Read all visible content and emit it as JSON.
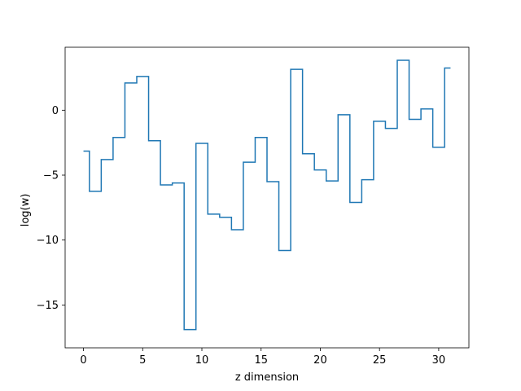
{
  "chart_data": {
    "type": "line",
    "drawstyle": "steps-mid",
    "xlabel": "z dimension",
    "ylabel": "log(w)",
    "xlim": [
      -1.55,
      32.55
    ],
    "ylim": [
      -18.3,
      4.85
    ],
    "xticks": [
      0,
      5,
      10,
      15,
      20,
      25,
      30
    ],
    "xtick_labels": [
      "0",
      "5",
      "10",
      "15",
      "20",
      "25",
      "30"
    ],
    "yticks": [
      0,
      -5,
      -10,
      -15
    ],
    "ytick_labels": [
      "0",
      "−5",
      "−10",
      "−15"
    ],
    "grid": false,
    "line_color": "#1f77b4",
    "x": [
      0,
      1,
      2,
      3,
      4,
      5,
      6,
      7,
      8,
      9,
      10,
      11,
      12,
      13,
      14,
      15,
      16,
      17,
      18,
      19,
      20,
      21,
      22,
      23,
      24,
      25,
      26,
      27,
      28,
      29,
      30,
      31
    ],
    "series": [
      {
        "values": [
          -3.15,
          -6.25,
          -3.8,
          -2.1,
          2.1,
          2.6,
          -2.35,
          -5.75,
          -5.6,
          -16.9,
          -2.55,
          -8.0,
          -8.25,
          -9.2,
          -4.0,
          -2.1,
          -5.5,
          -10.8,
          3.15,
          -3.35,
          -4.6,
          -5.45,
          -0.35,
          -7.1,
          -5.35,
          -0.85,
          -1.4,
          3.85,
          -0.7,
          0.1,
          -2.85,
          3.25
        ]
      }
    ]
  }
}
